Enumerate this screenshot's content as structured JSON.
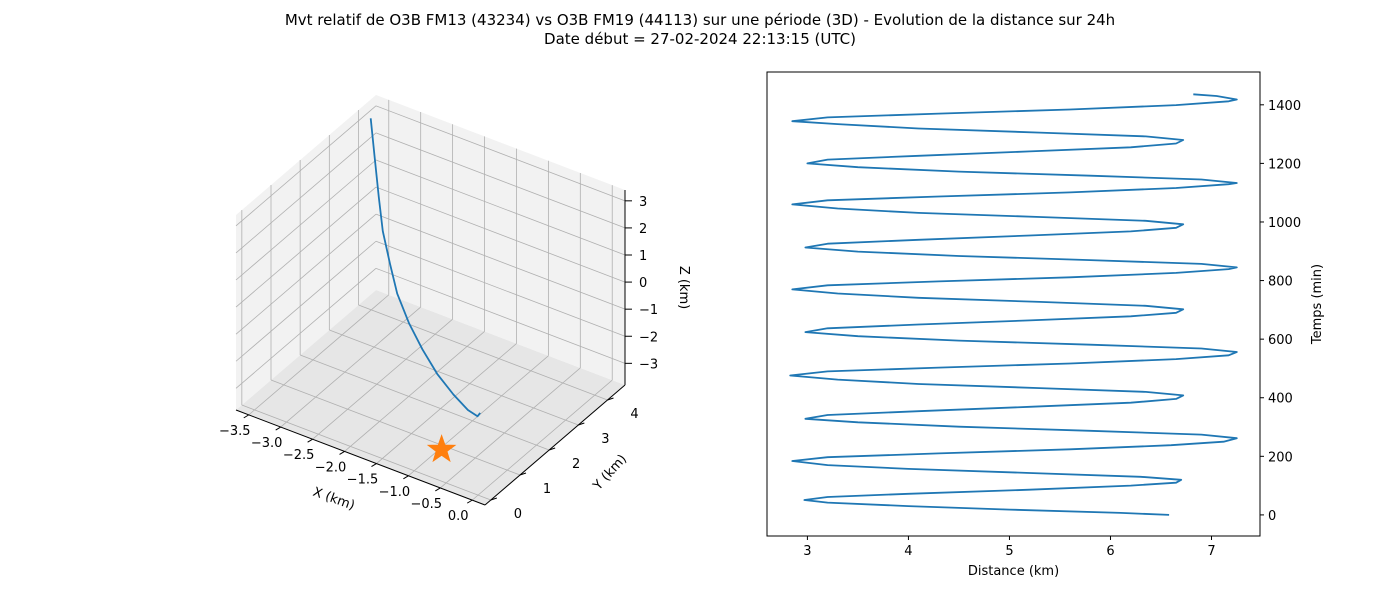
{
  "figure": {
    "title_line1": "Mvt relatif de O3B FM13 (43234) vs O3B FM19 (44113) sur une période (3D) - Evolution de la distance sur 24h",
    "title_line2": "Date début = 27-02-2024 22:13:15 (UTC)"
  },
  "colors": {
    "line": "#1f77b4",
    "star": "#ff7f0e",
    "pane_light": "#f2f2f2",
    "pane_mid": "#e6e6e6",
    "grid": "#b0b0b0"
  },
  "chart_data": [
    {
      "type": "line3d",
      "xlabel": "X (km)",
      "ylabel": "Y (km)",
      "zlabel": "Z (km)",
      "xlim": [
        -3.7,
        0.2
      ],
      "ylim": [
        -0.2,
        4.6
      ],
      "zlim": [
        -3.8,
        3.4
      ],
      "xticks": [
        "−3.5",
        "−3.0",
        "−2.5",
        "−2.0",
        "−1.5",
        "−1.0",
        "−0.5",
        "0.0"
      ],
      "xtick_values": [
        -3.5,
        -3.0,
        -2.5,
        -2.0,
        -1.5,
        -1.0,
        -0.5,
        0.0
      ],
      "yticks": [
        "0",
        "1",
        "2",
        "3",
        "4"
      ],
      "ytick_values": [
        0,
        1,
        2,
        3,
        4
      ],
      "zticks": [
        "−3",
        "−2",
        "−1",
        "0",
        "1",
        "2",
        "3"
      ],
      "ztick_values": [
        -3,
        -2,
        -1,
        0,
        1,
        2,
        3
      ],
      "trajectory": {
        "x": [
          -3.6,
          -3.4,
          -3.2,
          -3.0,
          -2.75,
          -2.5,
          -2.2,
          -1.9,
          -1.6,
          -1.3,
          -1.05,
          -0.9,
          -0.88
        ],
        "y": [
          4.2,
          3.9,
          3.6,
          3.3,
          3.0,
          2.7,
          2.45,
          2.25,
          2.1,
          2.0,
          1.95,
          1.95,
          2.0
        ],
        "z": [
          3.0,
          2.0,
          1.0,
          0.2,
          -0.5,
          -1.1,
          -1.7,
          -2.2,
          -2.7,
          -3.1,
          -3.4,
          -3.5,
          -3.4
        ]
      },
      "marker": {
        "symbol": "star",
        "x": -0.8,
        "y": 0.5,
        "z": -3.3
      }
    },
    {
      "type": "line",
      "xlabel": "Distance (km)",
      "ylabel": "Temps (min)",
      "xlim": [
        2.6,
        7.48
      ],
      "ylim": [
        -72,
        1512
      ],
      "xticks": [
        3,
        4,
        5,
        6,
        7
      ],
      "yticks": [
        0,
        200,
        400,
        600,
        800,
        1000,
        1200,
        1400
      ],
      "y_axis_side": "right",
      "series": [
        {
          "x": [
            6.58,
            6.1,
            5.0,
            4.0,
            3.2,
            2.97,
            3.2,
            4.0,
            5.2,
            6.2,
            6.65,
            6.7,
            6.3,
            5.2,
            4.0,
            3.2,
            2.85,
            3.2,
            4.3,
            5.6,
            6.6,
            7.12,
            7.25,
            6.9,
            5.8,
            4.5,
            3.5,
            2.98,
            3.2,
            4.1,
            5.2,
            6.2,
            6.65,
            6.72,
            6.35,
            5.3,
            4.1,
            3.3,
            2.83,
            3.2,
            4.3,
            5.6,
            6.65,
            7.17,
            7.25,
            6.9,
            5.8,
            4.5,
            3.5,
            2.98,
            3.2,
            4.1,
            5.2,
            6.2,
            6.65,
            6.72,
            6.35,
            5.3,
            4.1,
            3.3,
            2.85,
            3.2,
            4.3,
            5.6,
            6.65,
            7.17,
            7.25,
            6.9,
            5.8,
            4.5,
            3.5,
            2.98,
            3.2,
            4.1,
            5.2,
            6.2,
            6.65,
            6.72,
            6.35,
            5.3,
            4.1,
            3.3,
            2.85,
            3.2,
            4.3,
            5.6,
            6.65,
            7.17,
            7.25,
            6.9,
            5.8,
            4.5,
            3.5,
            3.0,
            3.2,
            4.1,
            5.2,
            6.2,
            6.65,
            6.72,
            6.35,
            5.3,
            4.1,
            3.3,
            2.85,
            3.2,
            4.3,
            5.6,
            6.65,
            7.17,
            7.25,
            7.05,
            6.82
          ],
          "y": [
            0,
            7,
            18,
            30,
            42,
            51,
            61,
            72,
            86,
            100,
            110,
            120,
            130,
            143,
            157,
            170,
            184,
            197,
            210,
            224,
            238,
            250,
            262,
            274,
            287,
            301,
            316,
            328,
            341,
            354,
            369,
            383,
            396,
            408,
            420,
            433,
            447,
            462,
            476,
            490,
            503,
            517,
            532,
            545,
            556,
            568,
            581,
            595,
            610,
            624,
            637,
            650,
            664,
            678,
            690,
            702,
            714,
            727,
            741,
            756,
            770,
            784,
            797,
            811,
            826,
            839,
            845,
            857,
            870,
            884,
            899,
            913,
            926,
            939,
            954,
            968,
            980,
            992,
            1004,
            1017,
            1031,
            1046,
            1060,
            1074,
            1087,
            1101,
            1116,
            1129,
            1133,
            1145,
            1158,
            1172,
            1187,
            1200,
            1213,
            1226,
            1241,
            1255,
            1268,
            1280,
            1292,
            1305,
            1319,
            1334,
            1344,
            1357,
            1370,
            1384,
            1399,
            1412,
            1418,
            1430,
            1436
          ]
        }
      ]
    }
  ]
}
